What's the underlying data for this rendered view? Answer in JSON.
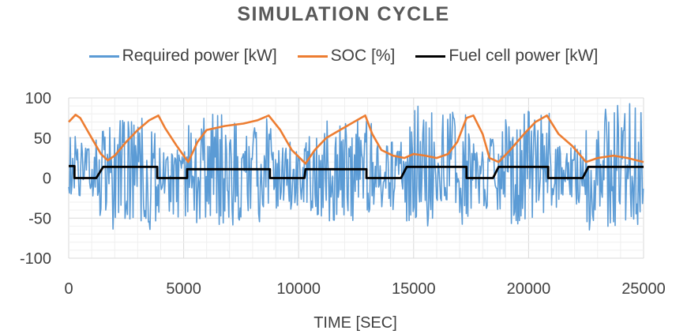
{
  "chart_data": {
    "type": "line",
    "title": "SIMULATION CYCLE",
    "xlabel": "TIME [SEC]",
    "ylabel": "",
    "xlim": [
      0,
      25000
    ],
    "ylim": [
      -100,
      100
    ],
    "x_ticks": [
      0,
      5000,
      10000,
      15000,
      20000,
      25000
    ],
    "y_ticks": [
      100,
      50,
      0,
      -50,
      -100
    ],
    "grid": true,
    "legend_position": "top",
    "series": [
      {
        "name": "Required power [kW]",
        "color": "#5b9bd5",
        "style": "dense-oscillation",
        "segments": [
          {
            "x_start": 0,
            "x_end": 1300,
            "min": -25,
            "max": 55
          },
          {
            "x_start": 1300,
            "x_end": 4000,
            "min": -65,
            "max": 75
          },
          {
            "x_start": 4000,
            "x_end": 5200,
            "min": -50,
            "max": 40
          },
          {
            "x_start": 5200,
            "x_end": 8800,
            "min": -60,
            "max": 80
          },
          {
            "x_start": 8800,
            "x_end": 10300,
            "min": -40,
            "max": 45
          },
          {
            "x_start": 10300,
            "x_end": 13200,
            "min": -55,
            "max": 75
          },
          {
            "x_start": 13200,
            "x_end": 14600,
            "min": -40,
            "max": 45
          },
          {
            "x_start": 14600,
            "x_end": 17400,
            "min": -60,
            "max": 90
          },
          {
            "x_start": 17400,
            "x_end": 18600,
            "min": -40,
            "max": 50
          },
          {
            "x_start": 18600,
            "x_end": 21000,
            "min": -60,
            "max": 90
          },
          {
            "x_start": 21000,
            "x_end": 22500,
            "min": -40,
            "max": 45
          },
          {
            "x_start": 22500,
            "x_end": 25000,
            "min": -65,
            "max": 95
          }
        ]
      },
      {
        "name": "SOC [%]",
        "color": "#ed7d31",
        "x": [
          0,
          300,
          500,
          800,
          1100,
          1400,
          1700,
          2000,
          2500,
          3000,
          3500,
          3900,
          4200,
          4700,
          5200,
          5600,
          6000,
          6800,
          7600,
          8200,
          8700,
          9200,
          9700,
          10300,
          10700,
          11200,
          11800,
          12400,
          12900,
          13200,
          13600,
          14100,
          14600,
          15000,
          15500,
          16000,
          16500,
          16900,
          17300,
          17600,
          18000,
          18300,
          18700,
          19200,
          19800,
          20300,
          20800,
          21300,
          21900,
          22500,
          23000,
          23700,
          24300,
          25000
        ],
        "values": [
          70,
          79,
          75,
          60,
          45,
          30,
          22,
          28,
          45,
          60,
          72,
          78,
          62,
          40,
          20,
          45,
          60,
          65,
          68,
          72,
          78,
          60,
          35,
          18,
          35,
          50,
          60,
          70,
          78,
          55,
          35,
          28,
          25,
          30,
          28,
          25,
          30,
          45,
          75,
          78,
          55,
          25,
          20,
          35,
          55,
          70,
          78,
          55,
          40,
          20,
          25,
          28,
          25,
          20
        ]
      },
      {
        "name": "Fuel cell power [kW]",
        "color": "#000000",
        "x": [
          0,
          250,
          250,
          1200,
          1500,
          3850,
          3850,
          5150,
          5150,
          8750,
          8750,
          10250,
          10300,
          12950,
          12950,
          14450,
          14700,
          17300,
          17300,
          18450,
          18700,
          20850,
          20850,
          22350,
          22600,
          25000
        ],
        "values": [
          15,
          15,
          0,
          0,
          14,
          14,
          0,
          0,
          11,
          11,
          0,
          0,
          11,
          11,
          0,
          0,
          14,
          14,
          0,
          0,
          14,
          14,
          0,
          0,
          14,
          14
        ]
      }
    ]
  }
}
